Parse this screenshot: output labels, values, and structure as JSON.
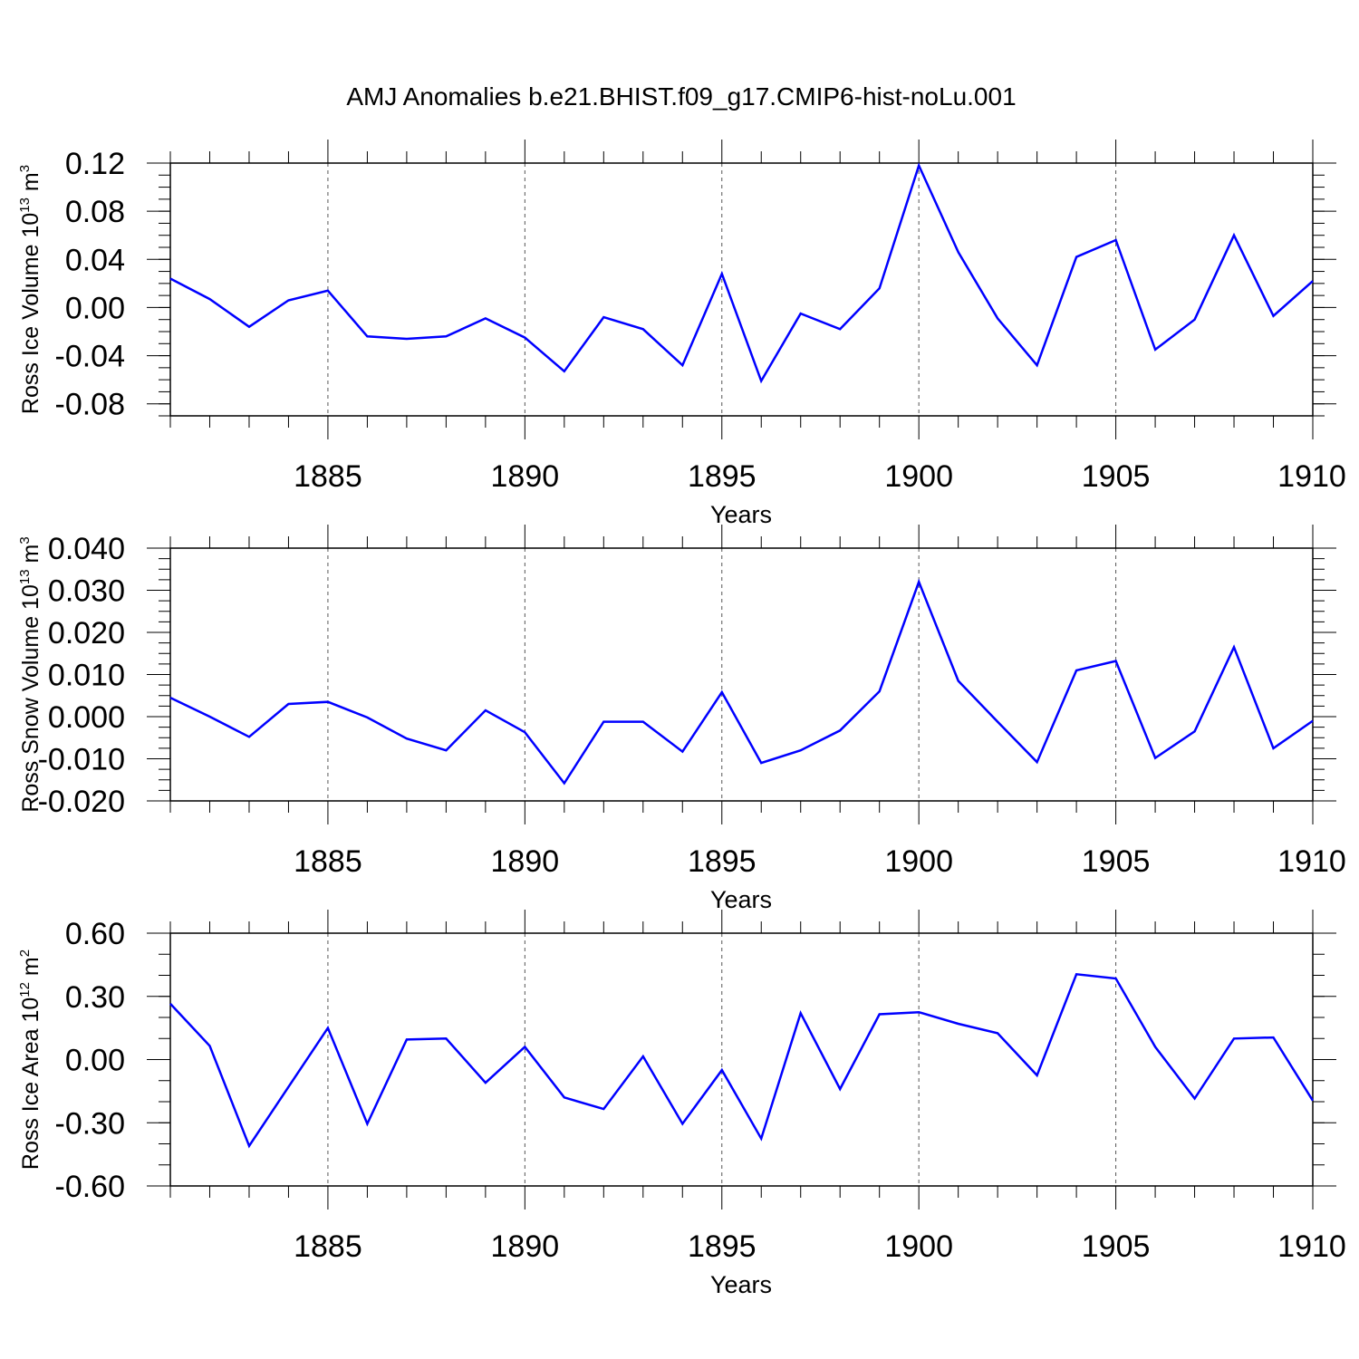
{
  "title": "AMJ Anomalies b.e21.BHIST.f09_g17.CMIP6-hist-noLu.001",
  "line_color": "#0000ff",
  "chart_data": [
    {
      "type": "line",
      "title": "AMJ Anomalies b.e21.BHIST.f09_g17.CMIP6-hist-noLu.001",
      "xlabel": "Years",
      "ylabel": "Ross Ice Volume 10",
      "ylabel_exp": "13",
      "ylabel_unit": " m",
      "ylabel_unit_exp": "3",
      "xlim": [
        1881,
        1910
      ],
      "ylim": [
        -0.09,
        0.12
      ],
      "yticks": [
        -0.08,
        -0.04,
        0.0,
        0.04,
        0.08,
        0.12
      ],
      "ytick_labels": [
        "-0.08",
        "-0.04",
        "0.00",
        "0.04",
        "0.08",
        "0.12"
      ],
      "yminor": 0.01,
      "xticks": [
        1885,
        1890,
        1895,
        1900,
        1905,
        1910
      ],
      "xtick_labels": [
        "1885",
        "1890",
        "1895",
        "1900",
        "1905",
        "1910"
      ],
      "x": [
        1881,
        1882,
        1883,
        1884,
        1885,
        1886,
        1887,
        1888,
        1889,
        1890,
        1891,
        1892,
        1893,
        1894,
        1895,
        1896,
        1897,
        1898,
        1899,
        1900,
        1901,
        1902,
        1903,
        1904,
        1905,
        1906,
        1907,
        1908,
        1909,
        1910
      ],
      "series": [
        {
          "name": "Ross Ice Volume",
          "values": [
            0.024,
            0.007,
            -0.016,
            0.006,
            0.014,
            -0.024,
            -0.026,
            -0.024,
            -0.009,
            -0.025,
            -0.053,
            -0.008,
            -0.018,
            -0.048,
            0.028,
            -0.061,
            -0.005,
            -0.018,
            0.016,
            0.118,
            0.046,
            -0.009,
            -0.048,
            0.042,
            0.056,
            -0.035,
            -0.01,
            0.06,
            -0.007,
            0.022
          ]
        }
      ]
    },
    {
      "type": "line",
      "xlabel": "Years",
      "ylabel": "Ross Snow Volume 10",
      "ylabel_exp": "13",
      "ylabel_unit": " m",
      "ylabel_unit_exp": "3",
      "xlim": [
        1881,
        1910
      ],
      "ylim": [
        -0.02,
        0.04
      ],
      "yticks": [
        -0.02,
        -0.01,
        0.0,
        0.01,
        0.02,
        0.03,
        0.04
      ],
      "ytick_labels": [
        "-0.020",
        "-0.010",
        "0.000",
        "0.010",
        "0.020",
        "0.030",
        "0.040"
      ],
      "yminor": 0.0025,
      "xticks": [
        1885,
        1890,
        1895,
        1900,
        1905,
        1910
      ],
      "xtick_labels": [
        "1885",
        "1890",
        "1895",
        "1900",
        "1905",
        "1910"
      ],
      "x": [
        1881,
        1882,
        1883,
        1884,
        1885,
        1886,
        1887,
        1888,
        1889,
        1890,
        1891,
        1892,
        1893,
        1894,
        1895,
        1896,
        1897,
        1898,
        1899,
        1900,
        1901,
        1902,
        1903,
        1904,
        1905,
        1906,
        1907,
        1908,
        1909,
        1910
      ],
      "series": [
        {
          "name": "Ross Snow Volume",
          "values": [
            0.0045,
            0.0,
            -0.0048,
            0.003,
            0.0035,
            -0.0002,
            -0.0052,
            -0.008,
            0.0015,
            -0.0037,
            -0.0158,
            -0.0012,
            -0.0012,
            -0.0083,
            0.0058,
            -0.011,
            -0.008,
            -0.0033,
            0.006,
            0.032,
            0.0085,
            -0.0012,
            -0.0108,
            0.011,
            0.0132,
            -0.0098,
            -0.0035,
            0.0165,
            -0.0075,
            -0.001
          ]
        }
      ]
    },
    {
      "type": "line",
      "xlabel": "Years",
      "ylabel": "Ross Ice Area 10",
      "ylabel_exp": "12",
      "ylabel_unit": " m",
      "ylabel_unit_exp": "2",
      "xlim": [
        1881,
        1910
      ],
      "ylim": [
        -0.6,
        0.6
      ],
      "yticks": [
        -0.6,
        -0.3,
        0.0,
        0.3,
        0.6
      ],
      "ytick_labels": [
        "-0.60",
        "-0.30",
        "0.00",
        "0.30",
        "0.60"
      ],
      "yminor": 0.1,
      "xticks": [
        1885,
        1890,
        1895,
        1900,
        1905,
        1910
      ],
      "xtick_labels": [
        "1885",
        "1890",
        "1895",
        "1900",
        "1905",
        "1910"
      ],
      "x": [
        1881,
        1882,
        1883,
        1884,
        1885,
        1886,
        1887,
        1888,
        1889,
        1890,
        1891,
        1892,
        1893,
        1894,
        1895,
        1896,
        1897,
        1898,
        1899,
        1900,
        1901,
        1902,
        1903,
        1904,
        1905,
        1906,
        1907,
        1908,
        1909,
        1910
      ],
      "series": [
        {
          "name": "Ross Ice Area",
          "values": [
            0.265,
            0.065,
            -0.41,
            -0.13,
            0.15,
            -0.305,
            0.095,
            0.1,
            -0.11,
            0.06,
            -0.18,
            -0.235,
            0.015,
            -0.305,
            -0.05,
            -0.375,
            0.22,
            -0.14,
            0.215,
            0.225,
            0.17,
            0.125,
            -0.075,
            0.405,
            0.385,
            0.06,
            -0.185,
            0.1,
            0.105,
            -0.195
          ]
        }
      ]
    }
  ]
}
